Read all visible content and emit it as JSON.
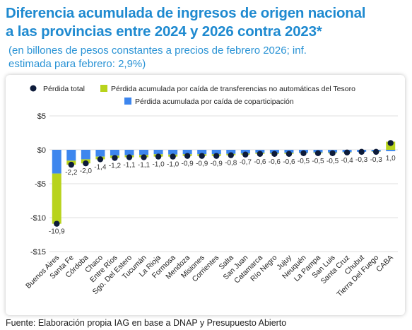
{
  "header": {
    "title_line1": "Diferencia acumulada de ingresos de origen nacional",
    "title_line2": "a las provincias entre 2024 y 2026 contra 2023*",
    "subtitle_line1": "(en billones de pesos constantes a precios de febrero 2026; inf.",
    "subtitle_line2": "estimada para febrero: 2,9%)"
  },
  "source": "Fuente: Elaboración propia IAG en base a DNAP y Presupuesto Abierto",
  "colors": {
    "total": "#0d1b3a",
    "transfers": "#b8d31c",
    "copart": "#3d86ee",
    "title": "#1f8ad0"
  },
  "chart_data": {
    "type": "bar",
    "stacked": true,
    "legend_position": "top",
    "grid": true,
    "ylim": [
      -15,
      5
    ],
    "yticks": [
      5,
      0,
      -5,
      -10,
      -15
    ],
    "ytick_labels": [
      "$5",
      "$0",
      "-$5",
      "-$10",
      "-$15"
    ],
    "categories": [
      "Buenos Aires",
      "Santa Fe",
      "Córdoba",
      "Chaco",
      "Entre Ríos",
      "Sgo. Del Estero",
      "Tucumán",
      "La Rioja",
      "Formosa",
      "Mendoza",
      "Misiones",
      "Corrientes",
      "Salta",
      "San Juan",
      "Catamarca",
      "Río Negro",
      "Jujuy",
      "Neuquén",
      "La Pampa",
      "San Luis",
      "Santa Cruz",
      "Chubut",
      "Tierra Del Fuego",
      "CABA"
    ],
    "series": [
      {
        "name": "Pérdida acumulada por caída de coparticipación",
        "type": "bar",
        "values": [
          -3.5,
          -1.6,
          -1.4,
          -1.0,
          -0.85,
          -0.8,
          -0.75,
          -0.65,
          -0.7,
          -0.65,
          -0.65,
          -0.65,
          -0.6,
          -0.55,
          -0.45,
          -0.5,
          -0.45,
          -0.45,
          -0.4,
          -0.4,
          -0.35,
          -0.3,
          -0.25,
          -0.2
        ]
      },
      {
        "name": "Pérdida acumulada por caída de transferencias no automáticas del Tesoro",
        "type": "bar",
        "values": [
          -7.4,
          -0.6,
          -0.6,
          -0.4,
          -0.35,
          -0.3,
          -0.35,
          -0.35,
          -0.3,
          -0.25,
          -0.25,
          -0.25,
          -0.2,
          -0.15,
          -0.15,
          -0.1,
          -0.15,
          -0.05,
          -0.1,
          -0.1,
          -0.05,
          0.0,
          -0.05,
          1.2
        ]
      },
      {
        "name": "Pérdida total",
        "type": "dot",
        "values": [
          -10.9,
          -2.2,
          -2.0,
          -1.4,
          -1.2,
          -1.1,
          -1.1,
          -1.0,
          -1.0,
          -0.9,
          -0.9,
          -0.9,
          -0.8,
          -0.7,
          -0.6,
          -0.6,
          -0.6,
          -0.5,
          -0.5,
          -0.5,
          -0.4,
          -0.3,
          -0.3,
          1.0
        ]
      }
    ],
    "data_labels": [
      "-10,9",
      "-2,2",
      "-2,0",
      "-1,4",
      "-1,2",
      "-1,1",
      "-1,1",
      "-1,0",
      "-1,0",
      "-0,9",
      "-0,9",
      "-0,9",
      "-0,8",
      "-0,7",
      "-0,6",
      "-0,6",
      "-0,6",
      "-0,5",
      "-0,5",
      "-0,5",
      "-0,4",
      "-0,3",
      "-0,3",
      "1,0"
    ]
  }
}
